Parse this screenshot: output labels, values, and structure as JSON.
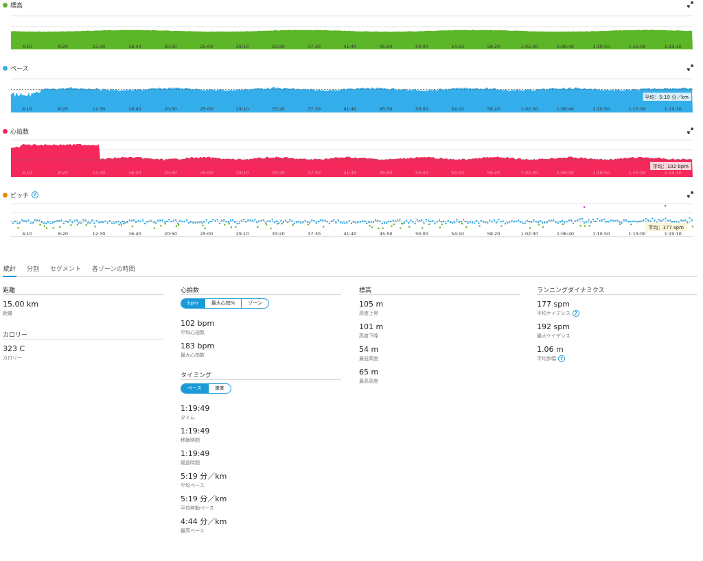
{
  "colors": {
    "elevation": "#5db528",
    "pace": "#34aeeb",
    "heart": "#f4285a",
    "cadence_dot": "#f08a00",
    "accent": "#1a9ad6"
  },
  "time_ticks": [
    "4:10",
    "8:20",
    "12:30",
    "16:40",
    "20:50",
    "25:00",
    "29:10",
    "33:20",
    "37:30",
    "41:40",
    "45:50",
    "50:00",
    "54:10",
    "58:20",
    "1:02:30",
    "1:06:40",
    "1:10:50",
    "1:15:00",
    "1:19:10"
  ],
  "charts": {
    "elevation": {
      "title": "標高"
    },
    "pace": {
      "title": "ペース",
      "avg_label": "平均：5:19 分／km"
    },
    "heart": {
      "title": "心拍数",
      "avg_label": "平均：102 bpm"
    },
    "cadence": {
      "title": "ピッチ",
      "avg_label": "平均：177 spm"
    }
  },
  "tabs": [
    "統計",
    "分割",
    "セグメント",
    "各ゾーンの時間"
  ],
  "distance": {
    "title": "距離",
    "value": "15.00 km",
    "label": "距離"
  },
  "calories": {
    "title": "カロリー",
    "value": "323 C",
    "label": "カロリー"
  },
  "heart_rate": {
    "title": "心拍数",
    "toggle": [
      "bpm",
      "最大心拍%",
      "ゾーン"
    ],
    "avg": {
      "value": "102 bpm",
      "label": "平均心拍数"
    },
    "max": {
      "value": "183 bpm",
      "label": "最大心拍数"
    }
  },
  "timing": {
    "title": "タイミング",
    "toggle": [
      "ペース",
      "速度"
    ],
    "stats": [
      {
        "value": "1:19:49",
        "label": "タイム"
      },
      {
        "value": "1:19:49",
        "label": "移動時間"
      },
      {
        "value": "1:19:49",
        "label": "経過時間"
      },
      {
        "value": "5:19 分／km",
        "label": "平均ペース"
      },
      {
        "value": "5:19 分／km",
        "label": "平均移動ペース"
      },
      {
        "value": "4:44 分／km",
        "label": "最高ペース"
      }
    ]
  },
  "elevation_stats": {
    "title": "標高",
    "stats": [
      {
        "value": "105 m",
        "label": "高度上昇"
      },
      {
        "value": "101 m",
        "label": "高度下降"
      },
      {
        "value": "54 m",
        "label": "最低高度"
      },
      {
        "value": "65 m",
        "label": "最高高度"
      }
    ]
  },
  "running_dynamics": {
    "title": "ランニングダイナミクス",
    "stats": [
      {
        "value": "177 spm",
        "label": "平均ケイデンス"
      },
      {
        "value": "192 spm",
        "label": "最大ケイデンス"
      },
      {
        "value": "1.06 m",
        "label": "平均歩幅"
      }
    ]
  }
}
